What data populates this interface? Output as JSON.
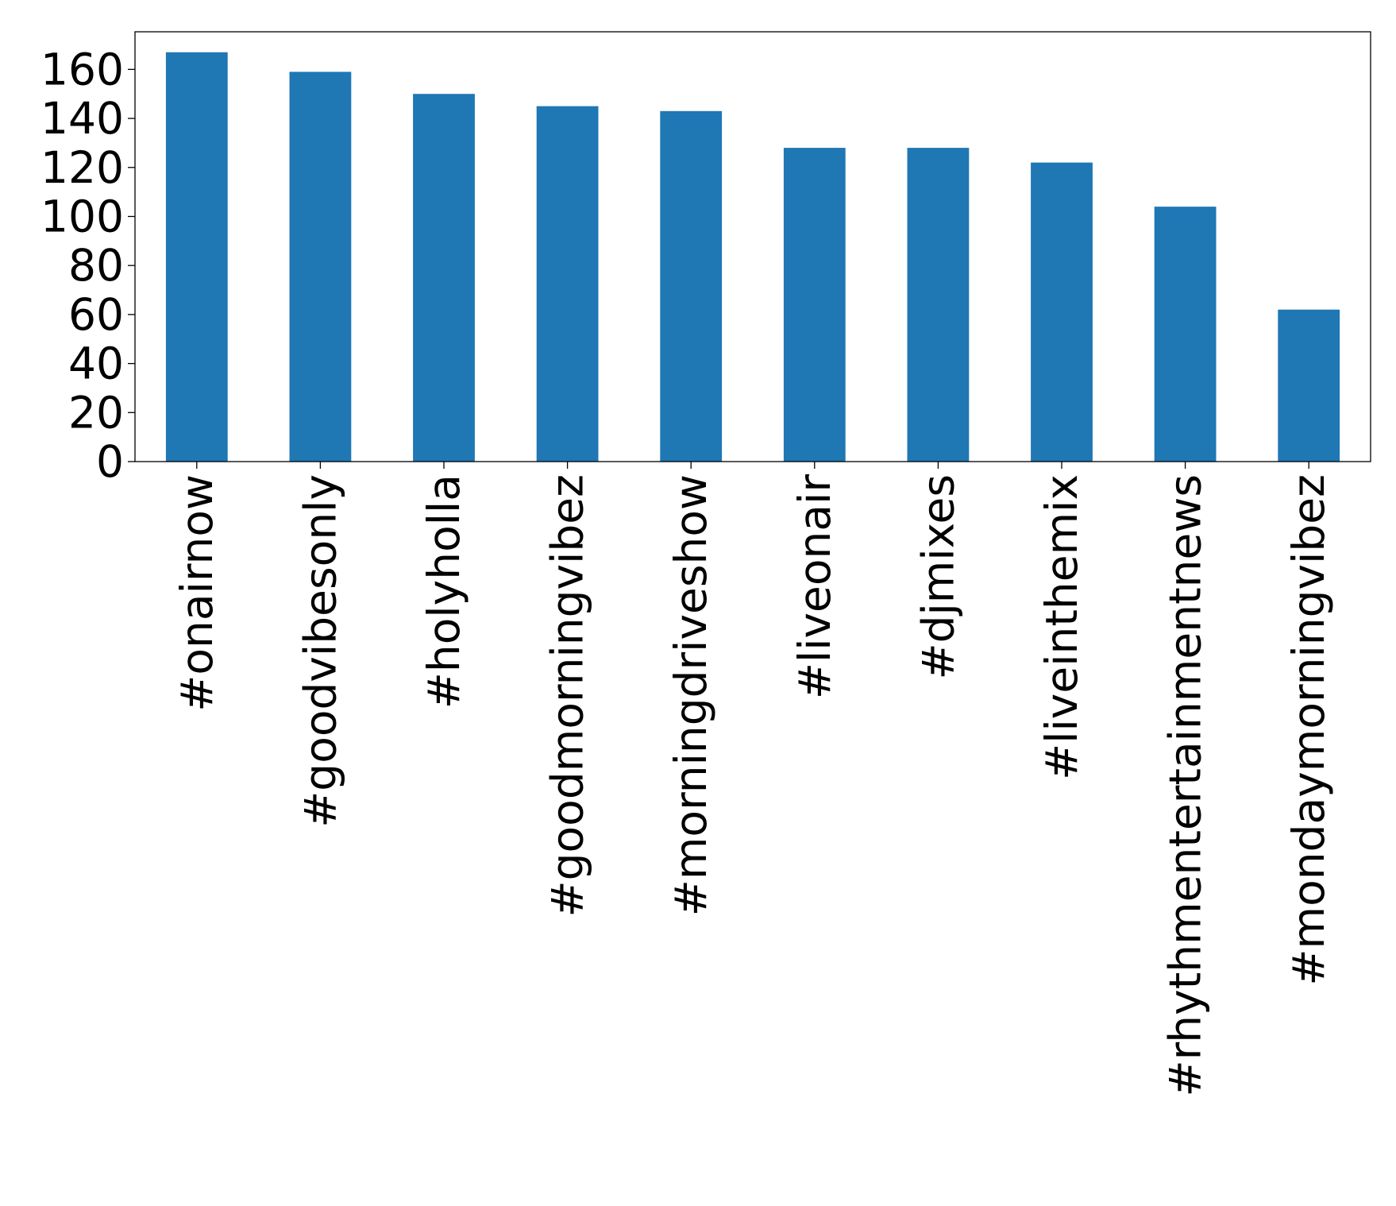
{
  "chart_data": {
    "type": "bar",
    "title": "",
    "xlabel": "",
    "ylabel": "",
    "categories": [
      "#onairnow",
      "#goodvibesonly",
      "#holyholla",
      "#goodmorningvibez",
      "#morningdriveshow",
      "#liveonair",
      "#djmixes",
      "#liveinthemix",
      "#rhythmentertainmentnews",
      "#mondaymorningvibez"
    ],
    "values": [
      167,
      159,
      150,
      145,
      143,
      128,
      128,
      122,
      104,
      62
    ],
    "ylim": [
      0,
      175.35
    ],
    "yticks": [
      0,
      20,
      40,
      60,
      80,
      100,
      120,
      140,
      160
    ],
    "bar_color": "#1f77b4",
    "grid": false,
    "legend": "none",
    "xtick_rotation": "vertical"
  }
}
